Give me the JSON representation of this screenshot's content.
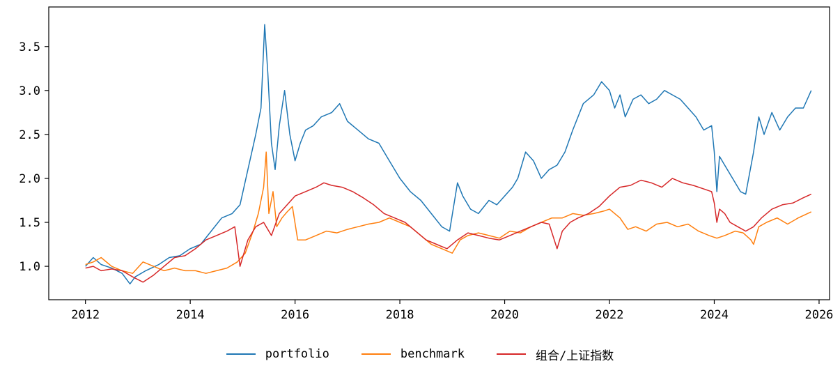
{
  "chart_data": {
    "type": "line",
    "title": "",
    "xlabel": "",
    "ylabel": "",
    "xlim": [
      2011.3,
      2026.2
    ],
    "ylim": [
      0.62,
      3.95
    ],
    "xticks": [
      2012,
      2014,
      2016,
      2018,
      2020,
      2022,
      2024,
      2026
    ],
    "xtick_labels": [
      "2012",
      "2014",
      "2016",
      "2018",
      "2020",
      "2022",
      "2024",
      "2026"
    ],
    "yticks": [
      1.0,
      1.5,
      2.0,
      2.5,
      3.0,
      3.5
    ],
    "ytick_labels": [
      "1.0",
      "1.5",
      "2.0",
      "2.5",
      "3.0",
      "3.5"
    ],
    "grid": false,
    "legend_position": "bottom-center",
    "series": [
      {
        "name": "portfolio",
        "color": "#1f77b4",
        "x": [
          2012.0,
          2012.15,
          2012.3,
          2012.5,
          2012.7,
          2012.85,
          2012.95,
          2013.15,
          2013.4,
          2013.6,
          2013.8,
          2014.0,
          2014.2,
          2014.4,
          2014.6,
          2014.8,
          2014.95,
          2015.1,
          2015.25,
          2015.35,
          2015.42,
          2015.48,
          2015.55,
          2015.62,
          2015.7,
          2015.8,
          2015.9,
          2016.0,
          2016.1,
          2016.2,
          2016.35,
          2016.5,
          2016.7,
          2016.85,
          2017.0,
          2017.2,
          2017.4,
          2017.6,
          2017.8,
          2018.0,
          2018.2,
          2018.4,
          2018.6,
          2018.8,
          2018.95,
          2019.1,
          2019.2,
          2019.35,
          2019.5,
          2019.7,
          2019.85,
          2020.0,
          2020.15,
          2020.25,
          2020.4,
          2020.55,
          2020.7,
          2020.85,
          2021.0,
          2021.15,
          2021.3,
          2021.5,
          2021.7,
          2021.85,
          2022.0,
          2022.1,
          2022.2,
          2022.3,
          2022.45,
          2022.6,
          2022.75,
          2022.9,
          2023.05,
          2023.2,
          2023.35,
          2023.5,
          2023.65,
          2023.8,
          2023.95,
          2024.0,
          2024.05,
          2024.1,
          2024.2,
          2024.35,
          2024.5,
          2024.6,
          2024.75,
          2024.85,
          2024.95,
          2025.1,
          2025.25,
          2025.4,
          2025.55,
          2025.7,
          2025.85
        ],
        "values": [
          1.0,
          1.1,
          1.02,
          0.98,
          0.92,
          0.8,
          0.88,
          0.95,
          1.02,
          1.1,
          1.12,
          1.2,
          1.25,
          1.4,
          1.55,
          1.6,
          1.7,
          2.1,
          2.5,
          2.8,
          3.75,
          3.2,
          2.4,
          2.1,
          2.6,
          3.0,
          2.5,
          2.2,
          2.4,
          2.55,
          2.6,
          2.7,
          2.75,
          2.85,
          2.65,
          2.55,
          2.45,
          2.4,
          2.2,
          2.0,
          1.85,
          1.75,
          1.6,
          1.45,
          1.4,
          1.95,
          1.8,
          1.65,
          1.6,
          1.75,
          1.7,
          1.8,
          1.9,
          2.0,
          2.3,
          2.2,
          2.0,
          2.1,
          2.15,
          2.3,
          2.55,
          2.85,
          2.95,
          3.1,
          3.0,
          2.8,
          2.95,
          2.7,
          2.9,
          2.95,
          2.85,
          2.9,
          3.0,
          2.95,
          2.9,
          2.8,
          2.7,
          2.55,
          2.6,
          2.3,
          1.85,
          2.25,
          2.15,
          2.0,
          1.85,
          1.82,
          2.3,
          2.7,
          2.5,
          2.75,
          2.55,
          2.7,
          2.8,
          2.8,
          3.0
        ]
      },
      {
        "name": "benchmark",
        "color": "#ff7f0e",
        "x": [
          2012.0,
          2012.15,
          2012.3,
          2012.5,
          2012.7,
          2012.9,
          2013.1,
          2013.3,
          2013.5,
          2013.7,
          2013.9,
          2014.1,
          2014.3,
          2014.5,
          2014.7,
          2014.9,
          2015.05,
          2015.2,
          2015.3,
          2015.4,
          2015.45,
          2015.5,
          2015.58,
          2015.65,
          2015.75,
          2015.85,
          2015.95,
          2016.05,
          2016.2,
          2016.4,
          2016.6,
          2016.8,
          2017.0,
          2017.2,
          2017.4,
          2017.6,
          2017.8,
          2018.0,
          2018.2,
          2018.4,
          2018.6,
          2018.8,
          2019.0,
          2019.15,
          2019.3,
          2019.5,
          2019.7,
          2019.9,
          2020.1,
          2020.3,
          2020.5,
          2020.7,
          2020.9,
          2021.1,
          2021.3,
          2021.5,
          2021.7,
          2021.9,
          2022.0,
          2022.2,
          2022.35,
          2022.5,
          2022.7,
          2022.9,
          2023.1,
          2023.3,
          2023.5,
          2023.7,
          2023.9,
          2024.05,
          2024.2,
          2024.4,
          2024.55,
          2024.7,
          2024.75,
          2024.85,
          2025.0,
          2025.2,
          2025.4,
          2025.6,
          2025.85
        ],
        "values": [
          1.02,
          1.05,
          1.1,
          1.0,
          0.95,
          0.92,
          1.05,
          1.0,
          0.95,
          0.98,
          0.95,
          0.95,
          0.92,
          0.95,
          0.98,
          1.05,
          1.15,
          1.4,
          1.6,
          1.9,
          2.3,
          1.6,
          1.85,
          1.45,
          1.55,
          1.62,
          1.68,
          1.3,
          1.3,
          1.35,
          1.4,
          1.38,
          1.42,
          1.45,
          1.48,
          1.5,
          1.55,
          1.5,
          1.45,
          1.35,
          1.25,
          1.2,
          1.15,
          1.3,
          1.35,
          1.38,
          1.35,
          1.32,
          1.4,
          1.38,
          1.45,
          1.5,
          1.55,
          1.55,
          1.6,
          1.58,
          1.6,
          1.63,
          1.65,
          1.55,
          1.42,
          1.45,
          1.4,
          1.48,
          1.5,
          1.45,
          1.48,
          1.4,
          1.35,
          1.32,
          1.35,
          1.4,
          1.38,
          1.3,
          1.25,
          1.45,
          1.5,
          1.55,
          1.48,
          1.55,
          1.62
        ]
      },
      {
        "name": "组合/上证指数",
        "color": "#d62728",
        "x": [
          2012.0,
          2012.15,
          2012.3,
          2012.5,
          2012.7,
          2012.9,
          2013.1,
          2013.3,
          2013.5,
          2013.7,
          2013.9,
          2014.1,
          2014.3,
          2014.5,
          2014.7,
          2014.85,
          2014.95,
          2015.1,
          2015.25,
          2015.4,
          2015.55,
          2015.7,
          2015.85,
          2016.0,
          2016.2,
          2016.4,
          2016.55,
          2016.7,
          2016.9,
          2017.1,
          2017.3,
          2017.5,
          2017.7,
          2017.9,
          2018.1,
          2018.3,
          2018.5,
          2018.7,
          2018.9,
          2019.1,
          2019.3,
          2019.5,
          2019.7,
          2019.9,
          2020.1,
          2020.3,
          2020.5,
          2020.7,
          2020.85,
          2021.0,
          2021.1,
          2021.25,
          2021.4,
          2021.6,
          2021.8,
          2022.0,
          2022.2,
          2022.4,
          2022.6,
          2022.8,
          2023.0,
          2023.2,
          2023.4,
          2023.6,
          2023.8,
          2023.95,
          2024.0,
          2024.05,
          2024.1,
          2024.2,
          2024.3,
          2024.45,
          2024.6,
          2024.75,
          2024.9,
          2025.1,
          2025.3,
          2025.5,
          2025.7,
          2025.85
        ],
        "values": [
          0.98,
          1.0,
          0.95,
          0.97,
          0.95,
          0.88,
          0.82,
          0.9,
          1.0,
          1.1,
          1.12,
          1.2,
          1.3,
          1.35,
          1.4,
          1.45,
          1.0,
          1.3,
          1.45,
          1.5,
          1.35,
          1.6,
          1.7,
          1.8,
          1.85,
          1.9,
          1.95,
          1.92,
          1.9,
          1.85,
          1.78,
          1.7,
          1.6,
          1.55,
          1.5,
          1.4,
          1.3,
          1.25,
          1.2,
          1.3,
          1.38,
          1.35,
          1.32,
          1.3,
          1.35,
          1.4,
          1.45,
          1.5,
          1.48,
          1.2,
          1.4,
          1.5,
          1.55,
          1.6,
          1.68,
          1.8,
          1.9,
          1.92,
          1.98,
          1.95,
          1.9,
          2.0,
          1.95,
          1.92,
          1.88,
          1.85,
          1.72,
          1.5,
          1.65,
          1.6,
          1.5,
          1.45,
          1.4,
          1.45,
          1.55,
          1.65,
          1.7,
          1.72,
          1.78,
          1.82
        ]
      }
    ]
  }
}
